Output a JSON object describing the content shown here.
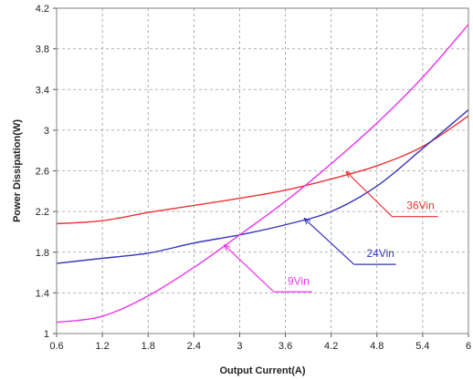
{
  "chart_data": {
    "type": "line",
    "title": "",
    "xlabel": "Output Current(A)",
    "ylabel": "Power Dissipation(W)",
    "xlim": [
      0.6,
      6
    ],
    "ylim": [
      1,
      4.2
    ],
    "grid": true,
    "grid_style": "dashed",
    "x_ticks": [
      "0.6",
      "1.2",
      "1.8",
      "2.4",
      "3",
      "3.6",
      "4.2",
      "4.8",
      "5.4",
      "6"
    ],
    "y_ticks": [
      "1",
      "1.4",
      "1.8",
      "2.2",
      "2.6",
      "3",
      "3.4",
      "3.8",
      "4.2"
    ],
    "series": [
      {
        "name": "36Vin",
        "color": "#ee3333",
        "x": [
          0.6,
          1.2,
          1.8,
          2.4,
          3.0,
          3.6,
          4.2,
          4.8,
          5.4,
          6.0
        ],
        "y": [
          2.08,
          2.11,
          2.19,
          2.26,
          2.33,
          2.41,
          2.52,
          2.65,
          2.84,
          3.14
        ]
      },
      {
        "name": "24Vin",
        "color": "#3333bb",
        "x": [
          0.6,
          1.2,
          1.8,
          2.4,
          3.0,
          3.6,
          4.2,
          4.8,
          5.4,
          6.0
        ],
        "y": [
          1.69,
          1.74,
          1.79,
          1.89,
          1.97,
          2.07,
          2.2,
          2.45,
          2.82,
          3.2
        ]
      },
      {
        "name": "9Vin",
        "color": "#ee33ee",
        "x": [
          0.6,
          1.2,
          1.8,
          2.4,
          3.0,
          3.6,
          4.2,
          4.8,
          5.4,
          6.0
        ],
        "y": [
          1.11,
          1.17,
          1.37,
          1.65,
          1.97,
          2.3,
          2.67,
          3.07,
          3.52,
          4.04
        ]
      }
    ],
    "annotations": [
      {
        "text": "36Vin",
        "series": "36Vin",
        "color": "#ee3333",
        "arrow_tip": [
          4.4,
          2.59
        ],
        "elbow": [
          5.0,
          2.15
        ],
        "leader_end": [
          5.6,
          2.15
        ]
      },
      {
        "text": "24Vin",
        "series": "24Vin",
        "color": "#3333bb",
        "arrow_tip": [
          3.85,
          2.13
        ],
        "elbow": [
          4.5,
          1.68
        ],
        "leader_end": [
          5.05,
          1.68
        ]
      },
      {
        "text": "9Vin",
        "series": "9Vin",
        "color": "#ee33ee",
        "arrow_tip": [
          2.8,
          1.87
        ],
        "elbow": [
          3.45,
          1.41
        ],
        "leader_end": [
          3.95,
          1.41
        ]
      }
    ]
  }
}
